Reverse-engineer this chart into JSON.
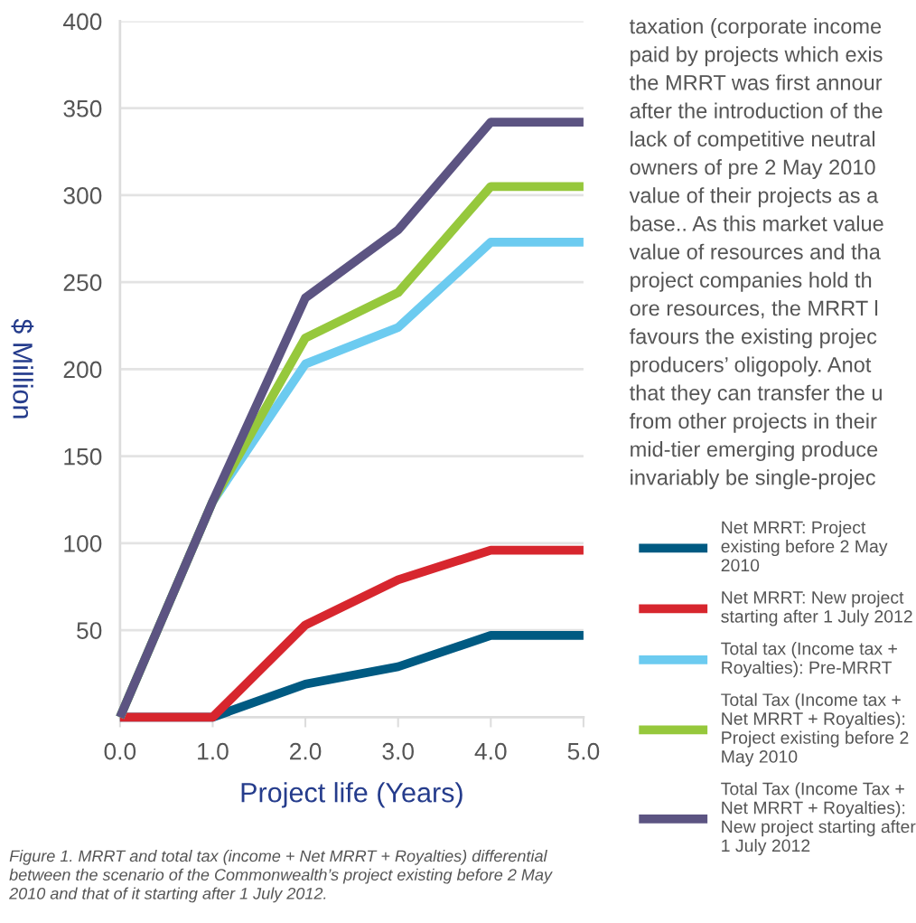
{
  "chart_data": {
    "type": "line",
    "xlabel": "Project life (Years)",
    "ylabel": "$ Million",
    "x": [
      0,
      1,
      2,
      3,
      4,
      5
    ],
    "xlim": [
      0,
      5
    ],
    "xticks": [
      {
        "value": 0,
        "label": "0.0"
      },
      {
        "value": 1,
        "label": "1.0"
      },
      {
        "value": 2,
        "label": "2.0"
      },
      {
        "value": 3,
        "label": "3.0"
      },
      {
        "value": 4,
        "label": "4.0"
      },
      {
        "value": 5,
        "label": "5.0"
      }
    ],
    "ylim": [
      0,
      400
    ],
    "yticks": [
      {
        "value": 0,
        "label": null
      },
      50,
      100,
      150,
      200,
      250,
      300,
      350,
      400
    ],
    "grid": "y",
    "legend": "right",
    "line_style": "solid",
    "series": [
      {
        "name": "Net MRRT: Project existing before 2 May 2010",
        "color": "#005a82",
        "values": [
          0,
          0,
          19,
          29,
          47,
          47
        ]
      },
      {
        "name": "Net MRRT: New project starting after 1 July 2012",
        "color": "#d7262e",
        "values": [
          0,
          0,
          53,
          79,
          96,
          96
        ]
      },
      {
        "name": "Total tax (Income tax + Royalties): Pre-MRRT",
        "color": "#6ccbf0",
        "values": [
          0,
          124,
          203,
          224,
          273,
          273
        ]
      },
      {
        "name": "Total Tax (Income tax + Net MRRT + Royalties): Project existing before 2 May 2010",
        "color": "#96c83c",
        "values": [
          0,
          124,
          218,
          244,
          305,
          305
        ]
      },
      {
        "name": "Total Tax (Income Tax + Net MRRT + Royalties): New project starting after 1 July 2012",
        "color": "#5c5482",
        "values": [
          0,
          124,
          241,
          280,
          342,
          342
        ]
      }
    ],
    "annotations": [
      "taxation (corporate income",
      "paid by projects which exis",
      "the MRRT was first annour",
      "after the introduction of the",
      "lack of competitive neutral",
      "owners of pre 2 May 2010",
      "value of their projects as a",
      "base.. As this market value",
      "value of resources and tha",
      "project companies hold th",
      "ore resources, the MRRT l",
      "favours the existing projec",
      "producers’ oligopoly. Anot",
      "that they can transfer the u",
      "from other projects in their",
      "mid-tier emerging produce",
      "invariably be single-projec",
      "Figure 1. MRRT and total tax (income + Net MRRT + Royalties) differential between the scenario of the Commonwealth’s project existing before 2 May 2010 and that of it starting after 1 July 2012."
    ]
  }
}
